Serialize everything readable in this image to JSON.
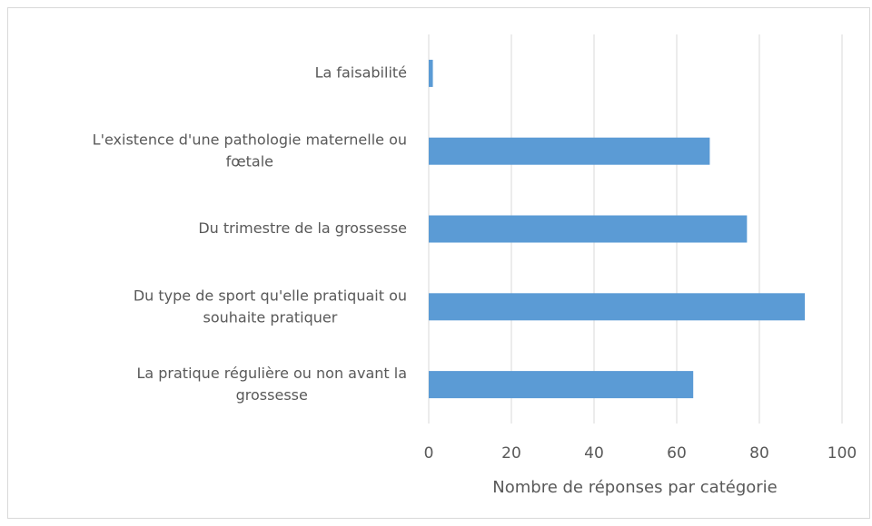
{
  "chart_data": {
    "type": "bar",
    "orientation": "horizontal",
    "categories": [
      "La faisabilité",
      "L'existence d'une pathologie maternelle ou fœtale",
      "Du trimestre de la grossesse",
      "Du type de sport qu'elle pratiquait ou souhaite pratiquer",
      "La pratique régulière ou non avant la grossesse"
    ],
    "values": [
      1,
      68,
      77,
      91,
      64
    ],
    "color": "#5b9bd5",
    "xlabel": "Nombre de réponses par catégorie",
    "xlim": [
      0,
      100
    ],
    "xticks": [
      0,
      20,
      40,
      60,
      80,
      100
    ],
    "grid": true
  }
}
